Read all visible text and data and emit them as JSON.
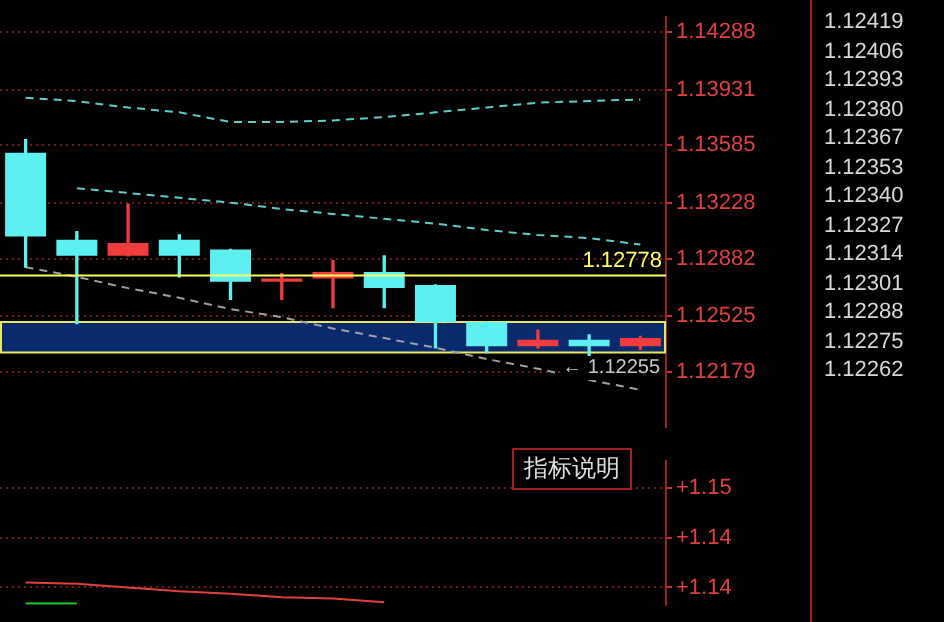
{
  "chart_data": [
    {
      "type": "candlestick",
      "categories": [
        null,
        null,
        null,
        null,
        null,
        null,
        null,
        null,
        null,
        null,
        null,
        null,
        null
      ],
      "ohlc": [
        [
          1.1354,
          1.1362,
          1.1283,
          1.1302
        ],
        [
          1.13,
          1.1305,
          1.1248,
          1.129
        ],
        [
          1.129,
          1.1322,
          1.129,
          1.1298
        ],
        [
          1.13,
          1.1303,
          1.1277,
          1.129
        ],
        [
          1.1294,
          1.1294,
          1.1263,
          1.1274
        ],
        [
          1.1274,
          1.1279,
          1.1263,
          1.1276
        ],
        [
          1.1276,
          1.1287,
          1.1258,
          1.128
        ],
        [
          1.128,
          1.129,
          1.1258,
          1.127
        ],
        [
          1.1272,
          1.1272,
          1.1233,
          1.1249
        ],
        [
          1.1249,
          1.1249,
          1.123,
          1.1234
        ],
        [
          1.1234,
          1.1244,
          1.1233,
          1.1238
        ],
        [
          1.1238,
          1.1241,
          1.12255,
          1.1234
        ],
        [
          1.1234,
          1.124,
          1.1232,
          1.1239
        ]
      ],
      "colors": [
        "#5ef0f0",
        "#5ef0f0",
        "#f03c3c",
        "#5ef0f0",
        "#5ef0f0",
        "#f03c3c",
        "#f03c3c",
        "#5ef0f0",
        "#5ef0f0",
        "#5ef0f0",
        "#f03c3c",
        "#5ef0f0",
        "#f03c3c"
      ],
      "series": [
        {
          "type": "line",
          "color": "#5ecccc",
          "line_style": "dashed",
          "values": [
            1.1388,
            1.1386,
            1.1382,
            1.1379,
            1.1373,
            1.1373,
            1.1374,
            1.1376,
            1.1379,
            1.1382,
            1.1385,
            1.1386,
            1.1387
          ]
        },
        {
          "type": "line",
          "color": "#5ecccc",
          "line_style": "dashed",
          "values": [
            null,
            1.1332,
            1.1329,
            1.1326,
            1.1323,
            1.1319,
            1.1316,
            1.1313,
            1.131,
            1.1306,
            1.1303,
            1.1301,
            1.1297
          ]
        },
        {
          "type": "line",
          "color": "#a0a0a0",
          "line_style": "dashed",
          "values": [
            1.1283,
            1.1277,
            1.127,
            1.1264,
            1.1257,
            1.1252,
            1.1245,
            1.1239,
            1.1233,
            1.1226,
            1.122,
            1.1213,
            1.1207
          ]
        }
      ],
      "ylim": [
        1.1184,
        1.1438
      ],
      "yticks": [
        1.12179,
        1.12525,
        1.12882,
        1.13228,
        1.13585,
        1.13931,
        1.14288
      ],
      "grid": "y",
      "tick_labels": "y",
      "marker": "none",
      "ref_lines": [
        {
          "axis": "y",
          "value": 1.12778,
          "label": "1.12778",
          "color": "#ffff66"
        }
      ],
      "bands": [
        {
          "axis": "y",
          "from": 1.123,
          "to": 1.1249,
          "color": "#0a2a6e"
        }
      ],
      "annotations": [
        {
          "text": "← 1.12255",
          "y": 1.12255
        },
        "1.12419",
        "1.12406",
        "1.12393",
        "1.12380",
        "1.12367",
        "1.12353",
        "1.12340",
        "1.12327",
        "1.12314",
        "1.12301",
        "1.12288",
        "1.12275",
        "1.12262"
      ]
    },
    {
      "type": "line",
      "categories": [
        null,
        null,
        null,
        null,
        null,
        null,
        null,
        null,
        null,
        null,
        null,
        null,
        null
      ],
      "series": [
        {
          "color": "#e04040",
          "values": [
            1.1384,
            1.1383,
            1.138,
            1.1377,
            1.1375,
            1.1372,
            1.1371,
            1.1368,
            null,
            null,
            null,
            null,
            null
          ]
        },
        {
          "color": "#20d020",
          "values": [
            1.1367,
            1.1367,
            null,
            null,
            null,
            null,
            null,
            null,
            null,
            null,
            null,
            null,
            null
          ]
        }
      ],
      "ylim": [
        1.1366,
        1.1482
      ],
      "yticks": [
        {
          "value": 1.146,
          "label": "+1.15"
        },
        {
          "value": 1.142,
          "label": "+1.14"
        },
        {
          "value": 1.138,
          "label": "+1.14"
        }
      ],
      "grid": "y",
      "tick_labels": "y",
      "marker": "none",
      "annotations": [
        "指标说明"
      ]
    }
  ]
}
